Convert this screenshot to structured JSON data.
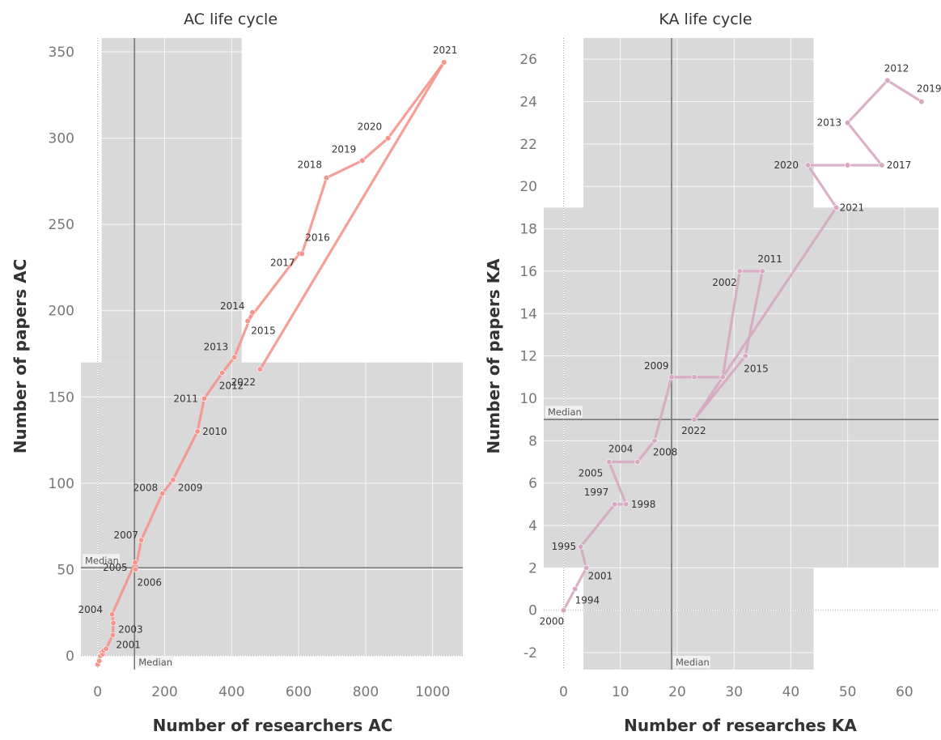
{
  "chart_data": [
    {
      "type": "line",
      "title": "AC life cycle",
      "xlabel": "Number of researchers AC",
      "ylabel": "Number of papers AC",
      "xlim": [
        -50,
        1090
      ],
      "ylim": [
        -8,
        358
      ],
      "xticks": [
        0,
        200,
        400,
        600,
        800,
        1000
      ],
      "yticks": [
        0,
        50,
        100,
        150,
        200,
        250,
        300,
        350
      ],
      "color": "#f4958c",
      "median_label": "Median",
      "median_x": 110,
      "median_y": 51,
      "grid": true,
      "points": [
        {
          "label": "",
          "x": 0,
          "y": -5
        },
        {
          "label": "",
          "x": 5,
          "y": -3
        },
        {
          "label": "",
          "x": 8,
          "y": 0
        },
        {
          "label": "",
          "x": 12,
          "y": 2
        },
        {
          "label": "",
          "x": 15,
          "y": 1
        },
        {
          "label": "",
          "x": 18,
          "y": 3
        },
        {
          "label": "",
          "x": 25,
          "y": 4
        },
        {
          "label": "2001",
          "x": 45,
          "y": 12
        },
        {
          "label": "2003",
          "x": 47,
          "y": 19
        },
        {
          "label": "2004",
          "x": 43,
          "y": 24
        },
        {
          "label": "2005",
          "x": 112,
          "y": 54
        },
        {
          "label": "2006",
          "x": 113,
          "y": 50
        },
        {
          "label": "2007",
          "x": 130,
          "y": 67
        },
        {
          "label": "2008",
          "x": 193,
          "y": 94
        },
        {
          "label": "2009",
          "x": 225,
          "y": 102
        },
        {
          "label": "2010",
          "x": 298,
          "y": 130
        },
        {
          "label": "2011",
          "x": 318,
          "y": 149
        },
        {
          "label": "2012",
          "x": 372,
          "y": 164
        },
        {
          "label": "2013",
          "x": 408,
          "y": 173
        },
        {
          "label": "2014",
          "x": 462,
          "y": 199
        },
        {
          "label": "2015",
          "x": 448,
          "y": 194
        },
        {
          "label": "2017",
          "x": 602,
          "y": 233
        },
        {
          "label": "2016",
          "x": 610,
          "y": 233
        },
        {
          "label": "2018",
          "x": 683,
          "y": 277
        },
        {
          "label": "2019",
          "x": 790,
          "y": 287
        },
        {
          "label": "2020",
          "x": 867,
          "y": 300
        },
        {
          "label": "2021",
          "x": 1034,
          "y": 344
        },
        {
          "label": "2022",
          "x": 485,
          "y": 166
        }
      ]
    },
    {
      "type": "line",
      "title": "KA life cycle",
      "xlabel": "Number of researches KA",
      "ylabel": "Number of papers KA",
      "xlim": [
        -3.5,
        66
      ],
      "ylim": [
        -2.8,
        27
      ],
      "xticks": [
        0,
        10,
        20,
        30,
        40,
        50,
        60
      ],
      "yticks": [
        -2,
        0,
        2,
        4,
        6,
        8,
        10,
        12,
        14,
        16,
        18,
        20,
        22,
        24,
        26
      ],
      "color": "#d7a9c1",
      "median_label": "Median",
      "median_x": 19,
      "median_y": 9,
      "grid": true,
      "points": [
        {
          "label": "2000",
          "x": 0,
          "y": 0
        },
        {
          "label": "1994",
          "x": 2,
          "y": 1
        },
        {
          "label": "2001",
          "x": 4,
          "y": 2
        },
        {
          "label": "1995",
          "x": 3,
          "y": 3
        },
        {
          "label": "1997",
          "x": 9,
          "y": 5
        },
        {
          "label": "1998",
          "x": 11,
          "y": 5
        },
        {
          "label": "2005",
          "x": 8,
          "y": 7
        },
        {
          "label": "2004",
          "x": 13,
          "y": 7
        },
        {
          "label": "2008",
          "x": 16,
          "y": 8
        },
        {
          "label": "2009",
          "x": 19,
          "y": 11
        },
        {
          "label": "",
          "x": 23,
          "y": 11
        },
        {
          "label": "",
          "x": 28,
          "y": 11
        },
        {
          "label": "2002",
          "x": 31,
          "y": 16
        },
        {
          "label": "2011",
          "x": 35,
          "y": 16
        },
        {
          "label": "2015",
          "x": 32,
          "y": 12
        },
        {
          "label": "2022",
          "x": 23,
          "y": 9
        },
        {
          "label": "2021",
          "x": 48,
          "y": 19
        },
        {
          "label": "2020",
          "x": 43,
          "y": 21
        },
        {
          "label": "",
          "x": 50,
          "y": 21
        },
        {
          "label": "2017",
          "x": 56,
          "y": 21
        },
        {
          "label": "2013",
          "x": 50,
          "y": 23
        },
        {
          "label": "2012",
          "x": 57,
          "y": 25
        },
        {
          "label": "2019",
          "x": 63,
          "y": 24
        }
      ]
    }
  ]
}
